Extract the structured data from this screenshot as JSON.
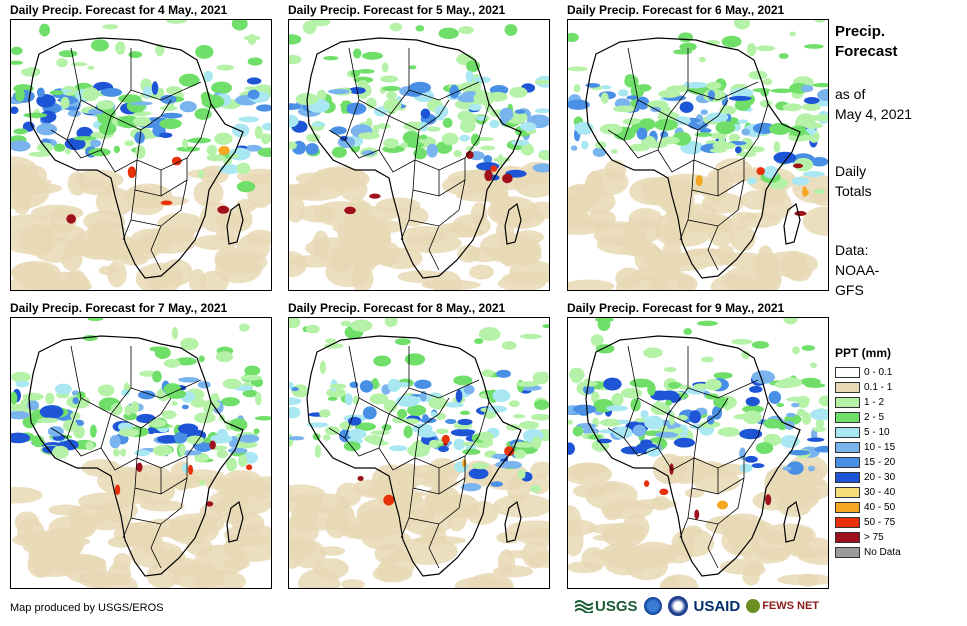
{
  "panels": [
    {
      "title": "Daily Precip. Forecast for 4 May., 2021",
      "seed": 11
    },
    {
      "title": "Daily Precip. Forecast for 5 May., 2021",
      "seed": 23
    },
    {
      "title": "Daily Precip. Forecast for 6 May., 2021",
      "seed": 37
    },
    {
      "title": "Daily Precip. Forecast for 7 May., 2021",
      "seed": 41
    },
    {
      "title": "Daily Precip. Forecast for 8 May., 2021",
      "seed": 53
    },
    {
      "title": "Daily Precip. Forecast for 9 May., 2021",
      "seed": 67
    }
  ],
  "side": {
    "title_line1": "Precip.",
    "title_line2": "Forecast",
    "asof_line1": "as of",
    "asof_line2": "May 4, 2021",
    "totals_line1": "Daily",
    "totals_line2": "Totals",
    "data_line1": "Data:",
    "data_line2": "NOAA-",
    "data_line3": "GFS"
  },
  "legend": {
    "title": "PPT (mm)",
    "items": [
      {
        "label": "0 - 0.1",
        "color": "#ffffff"
      },
      {
        "label": "0.1 - 1",
        "color": "#e8d9b5"
      },
      {
        "label": "1 - 2",
        "color": "#b5f2a8"
      },
      {
        "label": "2 - 5",
        "color": "#6fdf6a"
      },
      {
        "label": "5 - 10",
        "color": "#a9e8f2"
      },
      {
        "label": "10 - 15",
        "color": "#7ab4ef"
      },
      {
        "label": "15 - 20",
        "color": "#4a8fe6"
      },
      {
        "label": "20 - 30",
        "color": "#1d55d6"
      },
      {
        "label": "30 - 40",
        "color": "#f7e07a"
      },
      {
        "label": "40 - 50",
        "color": "#f5a623"
      },
      {
        "label": "50 - 75",
        "color": "#e8310b"
      },
      {
        "label": "> 75",
        "color": "#a0101a"
      },
      {
        "label": "No Data",
        "color": "#9a9a9a"
      }
    ]
  },
  "credit": "Map produced by USGS/EROS",
  "logos": {
    "usgs": "USGS",
    "usaid": "USAID",
    "fews": "FEWS NET"
  }
}
